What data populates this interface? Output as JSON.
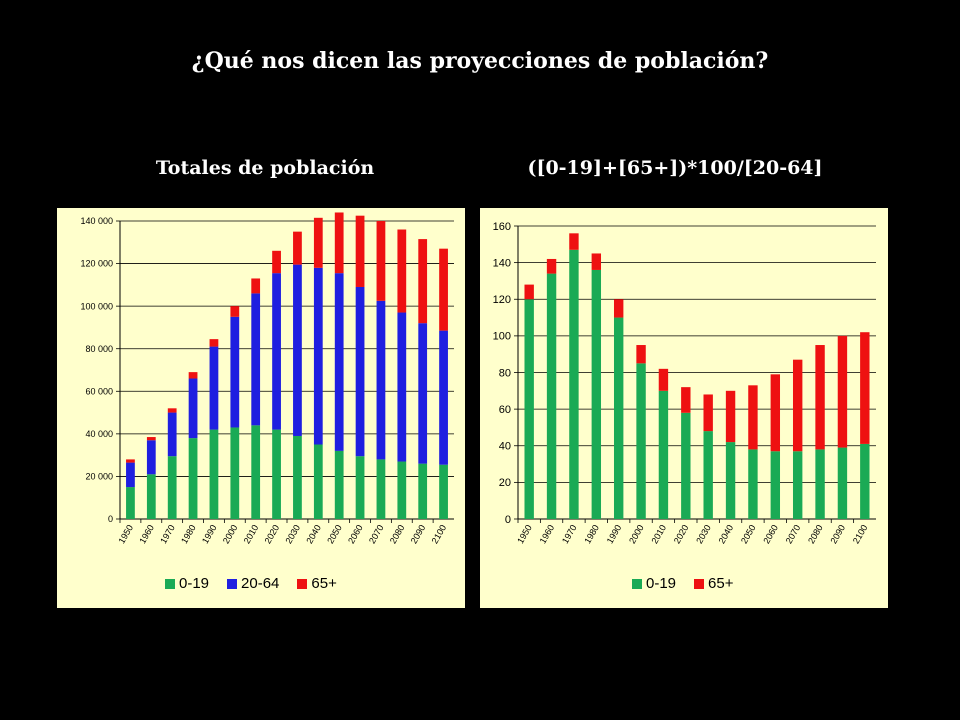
{
  "slide": {
    "title": "¿Qué nos dicen las proyecciones de población?",
    "left_heading": "Totales de población",
    "right_heading": "([0-19]+[65+])*100/[20-64]"
  },
  "colors": {
    "green": "#1aaa55",
    "blue": "#1f1fe0",
    "red": "#ee1111",
    "panel": "#ffffcc"
  },
  "chart_data": [
    {
      "type": "bar",
      "stacked": true,
      "title": "",
      "categories": [
        "1950",
        "1960",
        "1970",
        "1980",
        "1990",
        "2000",
        "2010",
        "2020",
        "2030",
        "2040",
        "2050",
        "2060",
        "2070",
        "2080",
        "2090",
        "2100"
      ],
      "ylim": [
        0,
        140000
      ],
      "yticks": [
        0,
        20000,
        40000,
        60000,
        80000,
        100000,
        120000,
        140000
      ],
      "ytick_labels": [
        "0",
        "20 000",
        "40 000",
        "60 000",
        "80 000",
        "100 000",
        "120 000",
        "140 000"
      ],
      "grid": true,
      "legend_position": "bottom",
      "series": [
        {
          "name": "0-19",
          "color": "#1aaa55",
          "values": [
            15000,
            21000,
            29500,
            38000,
            42000,
            43000,
            44000,
            42000,
            39000,
            35000,
            32000,
            29500,
            28000,
            27000,
            26000,
            25500
          ]
        },
        {
          "name": "20-64",
          "color": "#1f1fe0",
          "values": [
            11500,
            16000,
            20500,
            28000,
            39000,
            52000,
            62000,
            73500,
            80500,
            83000,
            83500,
            79500,
            74500,
            70000,
            66000,
            63000
          ]
        },
        {
          "name": "65+",
          "color": "#ee1111",
          "values": [
            1500,
            1500,
            2000,
            3000,
            3500,
            5000,
            7000,
            10500,
            15500,
            23500,
            28500,
            33500,
            37500,
            39000,
            39500,
            38500
          ]
        }
      ]
    },
    {
      "type": "bar",
      "stacked": true,
      "title": "",
      "categories": [
        "1950",
        "1960",
        "1970",
        "1980",
        "1990",
        "2000",
        "2010",
        "2020",
        "2030",
        "2040",
        "2050",
        "2060",
        "2070",
        "2080",
        "2090",
        "2100"
      ],
      "ylim": [
        0,
        160
      ],
      "yticks": [
        0,
        20,
        40,
        60,
        80,
        100,
        120,
        140,
        160
      ],
      "ytick_labels": [
        "0",
        "20",
        "40",
        "60",
        "80",
        "100",
        "120",
        "140",
        "160"
      ],
      "grid": true,
      "legend_position": "bottom",
      "series": [
        {
          "name": "0-19",
          "color": "#1aaa55",
          "values": [
            120,
            134,
            147,
            136,
            110,
            85,
            70,
            58,
            48,
            42,
            38,
            37,
            37,
            38,
            39,
            41
          ]
        },
        {
          "name": "65+",
          "color": "#ee1111",
          "values": [
            8,
            8,
            9,
            9,
            10,
            10,
            12,
            14,
            20,
            28,
            35,
            42,
            50,
            57,
            61,
            61
          ]
        }
      ]
    }
  ]
}
